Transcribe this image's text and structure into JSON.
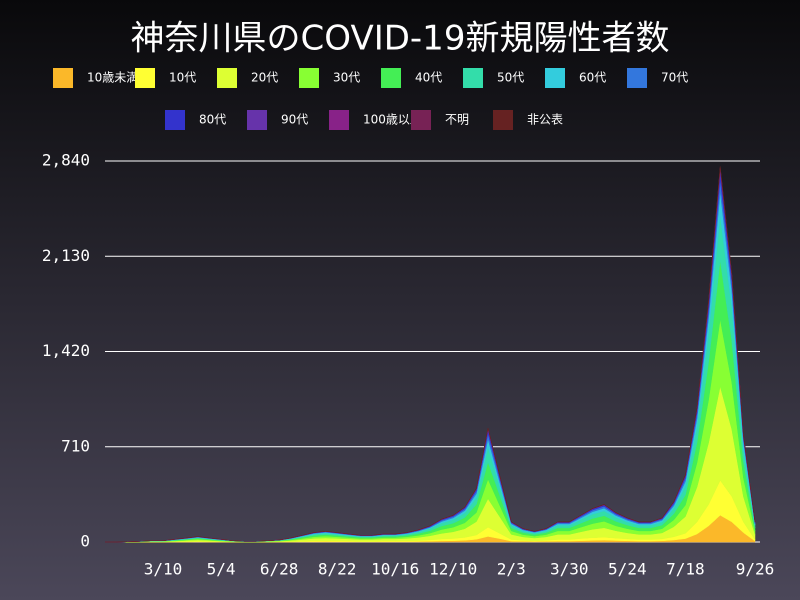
{
  "chart_data": {
    "type": "stacked-area",
    "title": "神奈川県のCOVID-19新規陽性者数",
    "categories": [
      null,
      null,
      null,
      null,
      null,
      "3/10",
      null,
      null,
      null,
      null,
      "5/4",
      null,
      null,
      null,
      null,
      "6/28",
      null,
      null,
      null,
      null,
      "8/22",
      null,
      null,
      null,
      null,
      "10/16",
      null,
      null,
      null,
      null,
      "12/10",
      null,
      null,
      null,
      null,
      "2/3",
      null,
      null,
      null,
      null,
      "3/30",
      null,
      null,
      null,
      null,
      "5/24",
      null,
      null,
      null,
      null,
      "7/18",
      null,
      null,
      null,
      null,
      null,
      "9/26"
    ],
    "ylim": [
      0,
      2840
    ],
    "yticks": [
      0,
      710,
      {
        "value": 1420,
        "label": "1,420"
      },
      {
        "value": 2130,
        "label": "2,130"
      },
      {
        "value": 2840,
        "label": "2,840"
      }
    ],
    "grid": true,
    "series": [
      {
        "name": "10歳未満",
        "color": "#fbb829",
        "values": [
          0,
          0,
          0,
          0,
          0,
          0,
          1,
          1,
          2,
          1,
          1,
          0,
          0,
          0,
          0,
          1,
          1,
          2,
          3,
          4,
          3,
          3,
          2,
          2,
          3,
          3,
          3,
          4,
          6,
          8,
          10,
          13,
          20,
          42,
          25,
          7,
          5,
          4,
          5,
          7,
          7,
          10,
          12,
          14,
          11,
          9,
          7,
          7,
          9,
          15,
          25,
          60,
          120,
          200,
          150,
          70,
          7
        ]
      },
      {
        "name": "10代",
        "color": "#ffff33",
        "values": [
          0,
          0,
          0,
          0,
          1,
          1,
          1,
          2,
          3,
          2,
          1,
          1,
          0,
          0,
          1,
          1,
          2,
          4,
          6,
          6,
          6,
          5,
          4,
          4,
          5,
          5,
          6,
          7,
          10,
          14,
          16,
          21,
          32,
          68,
          40,
          12,
          8,
          6,
          8,
          12,
          12,
          16,
          20,
          22,
          18,
          14,
          12,
          12,
          14,
          24,
          40,
          90,
          160,
          260,
          190,
          80,
          12
        ]
      },
      {
        "name": "20代",
        "color": "#ddff33",
        "values": [
          0,
          0,
          1,
          1,
          3,
          3,
          5,
          8,
          10,
          8,
          5,
          3,
          1,
          1,
          3,
          4,
          8,
          13,
          18,
          20,
          18,
          15,
          13,
          13,
          15,
          15,
          18,
          23,
          30,
          42,
          50,
          65,
          100,
          213,
          125,
          38,
          25,
          20,
          25,
          38,
          38,
          50,
          63,
          70,
          55,
          45,
          38,
          38,
          45,
          75,
          125,
          260,
          460,
          700,
          500,
          190,
          38
        ]
      },
      {
        "name": "30代",
        "color": "#88ff33",
        "values": [
          0,
          0,
          1,
          1,
          2,
          2,
          3,
          5,
          7,
          5,
          3,
          2,
          1,
          1,
          2,
          3,
          5,
          8,
          12,
          14,
          12,
          10,
          8,
          8,
          10,
          10,
          12,
          15,
          20,
          29,
          34,
          44,
          68,
          145,
          85,
          26,
          17,
          14,
          17,
          26,
          26,
          34,
          42,
          48,
          37,
          31,
          26,
          26,
          31,
          51,
          85,
          180,
          320,
          500,
          350,
          140,
          26
        ]
      },
      {
        "name": "40代",
        "color": "#44ee55",
        "values": [
          0,
          0,
          0,
          1,
          1,
          1,
          3,
          4,
          6,
          4,
          3,
          1,
          1,
          1,
          1,
          2,
          4,
          8,
          10,
          12,
          10,
          9,
          8,
          8,
          9,
          9,
          10,
          14,
          18,
          26,
          30,
          39,
          60,
          128,
          75,
          22,
          15,
          12,
          15,
          22,
          22,
          30,
          38,
          42,
          33,
          27,
          22,
          22,
          27,
          45,
          75,
          150,
          280,
          440,
          310,
          120,
          22
        ]
      },
      {
        "name": "50代",
        "color": "#33ddaa",
        "values": [
          0,
          0,
          0,
          1,
          1,
          1,
          3,
          4,
          5,
          4,
          3,
          1,
          1,
          1,
          1,
          2,
          4,
          6,
          9,
          10,
          9,
          8,
          6,
          6,
          8,
          8,
          9,
          12,
          16,
          22,
          26,
          34,
          52,
          110,
          65,
          20,
          13,
          10,
          13,
          20,
          20,
          26,
          33,
          36,
          29,
          23,
          20,
          20,
          23,
          39,
          65,
          120,
          220,
          340,
          250,
          100,
          20
        ]
      },
      {
        "name": "60代",
        "color": "#33ccdd",
        "values": [
          0,
          0,
          0,
          1,
          1,
          1,
          2,
          2,
          3,
          2,
          2,
          1,
          1,
          1,
          1,
          1,
          2,
          4,
          5,
          6,
          5,
          4,
          4,
          4,
          4,
          4,
          5,
          6,
          8,
          12,
          14,
          18,
          28,
          60,
          35,
          10,
          7,
          6,
          7,
          10,
          10,
          14,
          17,
          20,
          15,
          13,
          10,
          10,
          13,
          21,
          35,
          60,
          110,
          170,
          120,
          50,
          10
        ]
      },
      {
        "name": "70代",
        "color": "#3377dd",
        "values": [
          0,
          0,
          0,
          0,
          1,
          1,
          1,
          2,
          2,
          2,
          1,
          1,
          0,
          0,
          1,
          1,
          2,
          3,
          4,
          4,
          4,
          3,
          3,
          3,
          3,
          3,
          4,
          5,
          6,
          9,
          10,
          13,
          20,
          42,
          25,
          8,
          5,
          4,
          5,
          8,
          8,
          10,
          13,
          14,
          11,
          9,
          8,
          8,
          9,
          15,
          25,
          40,
          60,
          90,
          65,
          25,
          8
        ]
      },
      {
        "name": "80代",
        "color": "#3333cc",
        "values": [
          0,
          0,
          0,
          0,
          0,
          0,
          1,
          1,
          1,
          1,
          1,
          0,
          0,
          0,
          0,
          0,
          1,
          1,
          2,
          3,
          2,
          2,
          1,
          1,
          2,
          2,
          2,
          3,
          4,
          5,
          6,
          8,
          12,
          25,
          15,
          4,
          3,
          3,
          3,
          4,
          4,
          6,
          8,
          8,
          7,
          5,
          4,
          4,
          5,
          9,
          15,
          25,
          40,
          60,
          40,
          15,
          4
        ]
      },
      {
        "name": "90代",
        "color": "#6633aa",
        "values": [
          0,
          0,
          0,
          0,
          0,
          0,
          0,
          1,
          1,
          1,
          0,
          0,
          0,
          0,
          0,
          0,
          1,
          1,
          1,
          1,
          1,
          1,
          1,
          1,
          1,
          1,
          1,
          1,
          1,
          2,
          2,
          3,
          4,
          9,
          5,
          2,
          1,
          1,
          1,
          2,
          2,
          2,
          2,
          3,
          2,
          2,
          2,
          2,
          2,
          3,
          5,
          8,
          15,
          22,
          14,
          5,
          2
        ]
      },
      {
        "name": "100歳以上",
        "color": "#882288",
        "values": [
          0,
          0,
          0,
          0,
          0,
          0,
          0,
          0,
          0,
          0,
          0,
          0,
          0,
          0,
          0,
          0,
          0,
          0,
          0,
          0,
          0,
          0,
          0,
          0,
          0,
          0,
          0,
          0,
          0,
          0,
          0,
          0,
          0,
          1,
          0,
          0,
          0,
          0,
          0,
          0,
          0,
          0,
          0,
          0,
          0,
          0,
          0,
          0,
          0,
          0,
          0,
          0,
          1,
          1,
          1,
          0,
          0
        ]
      },
      {
        "name": "不明",
        "color": "#772255",
        "values": [
          0,
          0,
          0,
          0,
          0,
          0,
          0,
          0,
          0,
          0,
          0,
          0,
          0,
          0,
          0,
          0,
          0,
          0,
          0,
          0,
          0,
          0,
          0,
          0,
          0,
          0,
          0,
          0,
          1,
          1,
          1,
          1,
          2,
          4,
          3,
          1,
          1,
          0,
          1,
          1,
          1,
          1,
          1,
          2,
          1,
          1,
          1,
          1,
          1,
          2,
          3,
          4,
          8,
          10,
          6,
          3,
          1
        ]
      },
      {
        "name": "非公表",
        "color": "#662222",
        "values": [
          0,
          0,
          0,
          0,
          0,
          0,
          0,
          0,
          0,
          0,
          0,
          0,
          0,
          0,
          0,
          0,
          0,
          0,
          0,
          0,
          0,
          0,
          0,
          0,
          0,
          0,
          0,
          0,
          0,
          0,
          1,
          1,
          2,
          3,
          2,
          0,
          0,
          0,
          0,
          0,
          0,
          1,
          1,
          1,
          1,
          1,
          0,
          0,
          1,
          1,
          2,
          3,
          6,
          7,
          4,
          2,
          0
        ]
      }
    ]
  }
}
